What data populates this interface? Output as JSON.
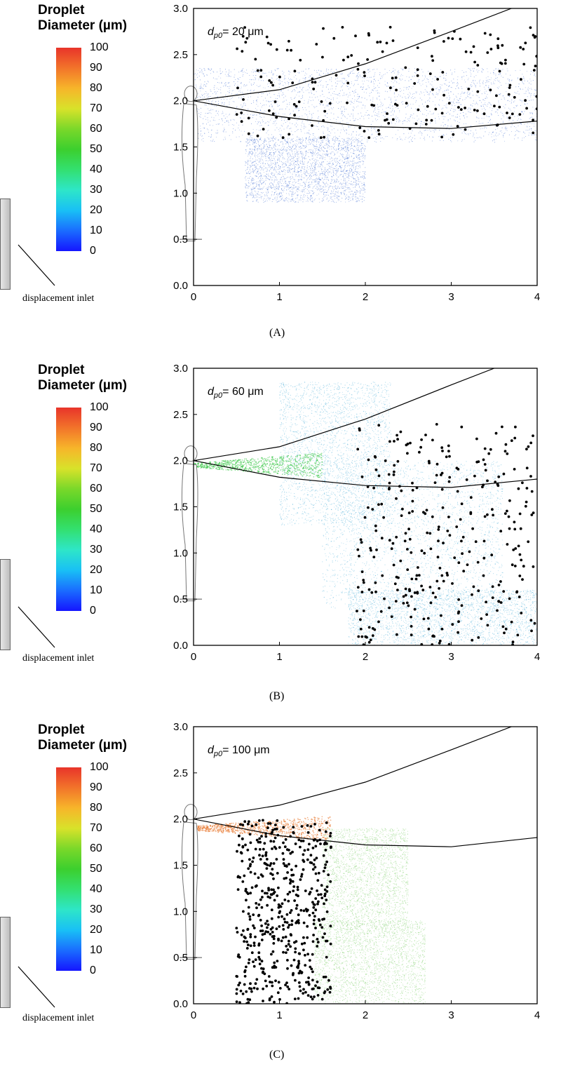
{
  "colorbar": {
    "title_line1": "Droplet",
    "title_line2": "Diameter (µm)",
    "ticks": [
      "100",
      "90",
      "80",
      "70",
      "60",
      "50",
      "40",
      "30",
      "20",
      "10",
      "0"
    ],
    "colors": [
      "#1515ff",
      "#19c0f5",
      "#33e070",
      "#d8e22a",
      "#f2742a",
      "#e8342a"
    ]
  },
  "inlet_label": "displacement inlet",
  "chart_data": [
    {
      "type": "scatter",
      "panel_label": "(A)",
      "annotation": {
        "symbol": "d",
        "subscript": "p0",
        "text": "= 20 μm"
      },
      "xlim": [
        0,
        4
      ],
      "ylim": [
        0,
        3.0
      ],
      "x_ticks": [
        "0",
        "1",
        "2",
        "3",
        "4"
      ],
      "y_ticks": [
        "0.0",
        "0.5",
        "1.0",
        "1.5",
        "2.0",
        "2.5",
        "3.0"
      ],
      "cloud_color": "#3a68d0",
      "clouds": [
        {
          "x0": 0.0,
          "x1": 4.0,
          "y_low": 1.55,
          "y_high": 2.35,
          "diam": 8
        },
        {
          "x0": 0.6,
          "x1": 2.0,
          "y_low": 0.9,
          "y_high": 1.6,
          "diam": 5
        }
      ],
      "black_dots": {
        "x_range": [
          0.5,
          4.0
        ],
        "y_range": [
          1.6,
          2.8
        ],
        "count": 190
      },
      "upper_envelope": [
        [
          0,
          2.0
        ],
        [
          1,
          2.12
        ],
        [
          2,
          2.4
        ],
        [
          3,
          2.75
        ],
        [
          3.7,
          3.0
        ]
      ],
      "lower_envelope": [
        [
          0,
          2.0
        ],
        [
          1,
          1.83
        ],
        [
          2,
          1.72
        ],
        [
          3,
          1.7
        ],
        [
          4,
          1.78
        ]
      ]
    },
    {
      "type": "scatter",
      "panel_label": "(B)",
      "annotation": {
        "symbol": "d",
        "subscript": "p0",
        "text": "= 60 μm"
      },
      "xlim": [
        0,
        4
      ],
      "ylim": [
        0,
        3.0
      ],
      "x_ticks": [
        "0",
        "1",
        "2",
        "3",
        "4"
      ],
      "y_ticks": [
        "0.0",
        "0.5",
        "1.0",
        "1.5",
        "2.0",
        "2.5",
        "3.0"
      ],
      "cloud_color": "#4aaed8",
      "jet": {
        "x1": 1.5,
        "y_center": 1.95,
        "diam": 55
      },
      "clouds": [
        {
          "x0": 1.0,
          "x1": 2.3,
          "y_low": 1.3,
          "y_high": 2.85,
          "diam": 25
        },
        {
          "x0": 1.5,
          "x1": 3.6,
          "y_low": 0.4,
          "y_high": 2.0,
          "diam": 22
        },
        {
          "x0": 1.8,
          "x1": 4.0,
          "y_low": 0.0,
          "y_high": 0.6,
          "diam": 20
        }
      ],
      "black_dots": {
        "x_range": [
          1.9,
          4.0
        ],
        "y_range": [
          0.0,
          2.4
        ],
        "count": 330
      },
      "upper_envelope": [
        [
          0,
          2.0
        ],
        [
          1,
          2.15
        ],
        [
          2,
          2.45
        ],
        [
          3,
          2.82
        ],
        [
          3.5,
          3.0
        ]
      ],
      "lower_envelope": [
        [
          0,
          2.0
        ],
        [
          1,
          1.82
        ],
        [
          2,
          1.73
        ],
        [
          3,
          1.71
        ],
        [
          4,
          1.8
        ]
      ]
    },
    {
      "type": "scatter",
      "panel_label": "(C)",
      "annotation": {
        "symbol": "d",
        "subscript": "p0",
        "text": "= 100 μm"
      },
      "xlim": [
        0,
        4
      ],
      "ylim": [
        0,
        3.0
      ],
      "x_ticks": [
        "0",
        "1",
        "2",
        "3",
        "4"
      ],
      "y_ticks": [
        "0.0",
        "0.5",
        "1.0",
        "1.5",
        "2.0",
        "2.5",
        "3.0"
      ],
      "cloud_color": "#7fcf6a",
      "jet": {
        "x1": 1.6,
        "y_center": 1.9,
        "diam": 95
      },
      "clouds": [
        {
          "x0": 1.5,
          "x1": 2.5,
          "y_low": 0.8,
          "y_high": 1.9,
          "diam": 55
        },
        {
          "x0": 1.4,
          "x1": 2.7,
          "y_low": 0.0,
          "y_high": 0.9,
          "diam": 30
        }
      ],
      "black_dots": {
        "x_range": [
          0.5,
          1.6
        ],
        "y_range": [
          0.0,
          2.0
        ],
        "count": 520
      },
      "upper_envelope": [
        [
          0,
          2.0
        ],
        [
          1,
          2.15
        ],
        [
          2,
          2.4
        ],
        [
          3,
          2.75
        ],
        [
          3.7,
          3.0
        ]
      ],
      "lower_envelope": [
        [
          0,
          2.0
        ],
        [
          1,
          1.82
        ],
        [
          2,
          1.72
        ],
        [
          3,
          1.7
        ],
        [
          4,
          1.8
        ]
      ]
    }
  ]
}
